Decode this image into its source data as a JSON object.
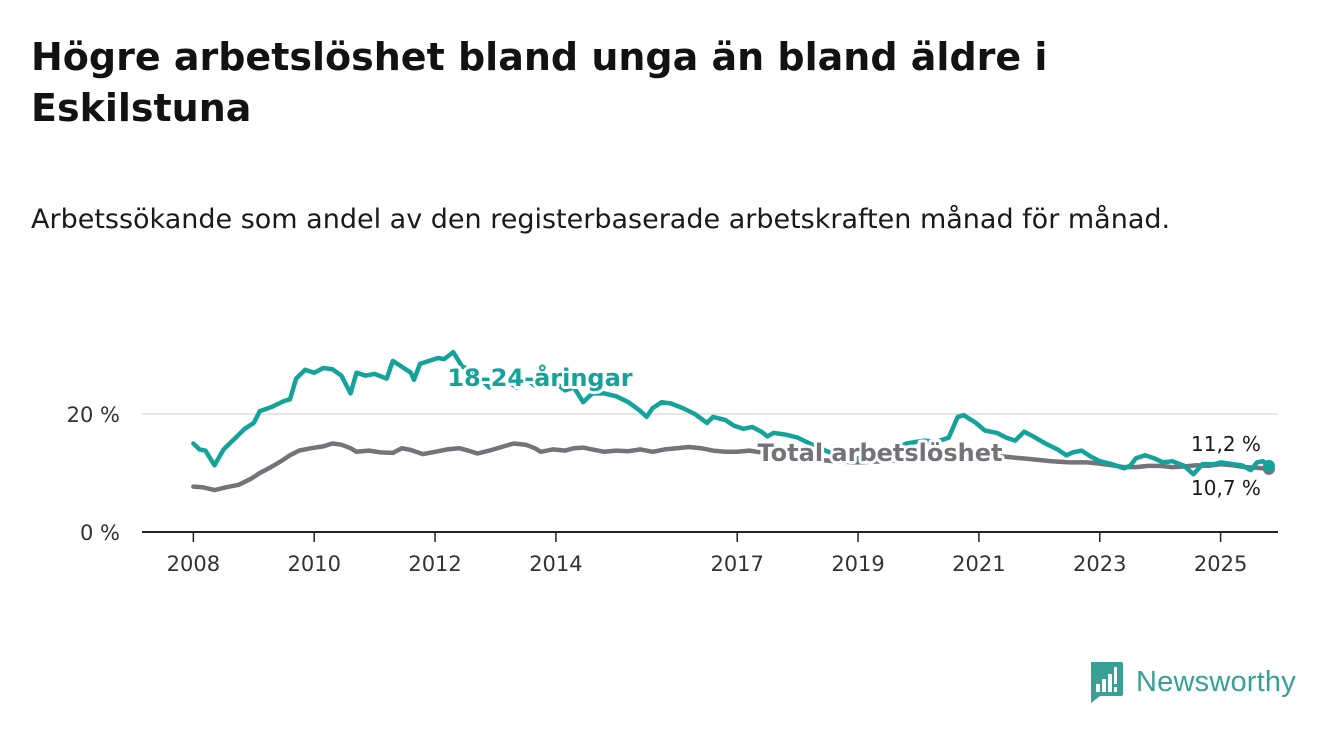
{
  "title": "Högre arbetslöshet bland unga än bland äldre i Eskilstuna",
  "subtitle": "Arbetssökande som andel av den registerbaserade arbetskraften månad för månad.",
  "brand": {
    "name": "Newsworthy",
    "color": "#39a095"
  },
  "chart_data": {
    "type": "line",
    "y_ticks": [
      "0 %",
      "20 %"
    ],
    "y_tick_values": [
      0,
      20
    ],
    "ylim": [
      0,
      30
    ],
    "x_ticks": [
      "2008",
      "2010",
      "2012",
      "2014",
      "2017",
      "2019",
      "2021",
      "2023",
      "2025"
    ],
    "x_tick_values": [
      2008,
      2010,
      2012,
      2014,
      2017,
      2019,
      2021,
      2023,
      2025
    ],
    "xlim": [
      2007.15,
      2025.95
    ],
    "grid": true,
    "series": [
      {
        "name": "18-24-åringar",
        "label": "18-24-åringar",
        "color": "#14a39a",
        "last_value_label": "11,2 %",
        "points": [
          [
            2008.0,
            15.0
          ],
          [
            2008.1,
            14.0
          ],
          [
            2008.2,
            13.8
          ],
          [
            2008.35,
            11.3
          ],
          [
            2008.5,
            14.0
          ],
          [
            2008.7,
            16.0
          ],
          [
            2008.85,
            17.5
          ],
          [
            2009.0,
            18.5
          ],
          [
            2009.1,
            20.5
          ],
          [
            2009.3,
            21.2
          ],
          [
            2009.5,
            22.2
          ],
          [
            2009.6,
            22.5
          ],
          [
            2009.7,
            26.0
          ],
          [
            2009.85,
            27.5
          ],
          [
            2010.0,
            27.0
          ],
          [
            2010.15,
            27.8
          ],
          [
            2010.3,
            27.6
          ],
          [
            2010.45,
            26.5
          ],
          [
            2010.6,
            23.5
          ],
          [
            2010.7,
            27.0
          ],
          [
            2010.85,
            26.5
          ],
          [
            2011.0,
            26.8
          ],
          [
            2011.2,
            26.0
          ],
          [
            2011.3,
            29.0
          ],
          [
            2011.45,
            28.0
          ],
          [
            2011.6,
            27.0
          ],
          [
            2011.65,
            25.8
          ],
          [
            2011.75,
            28.5
          ],
          [
            2011.9,
            29.0
          ],
          [
            2012.05,
            29.5
          ],
          [
            2012.15,
            29.3
          ],
          [
            2012.3,
            30.5
          ],
          [
            2012.45,
            28.0
          ],
          [
            2012.6,
            27.5
          ],
          [
            2012.75,
            26.0
          ],
          [
            2012.9,
            24.5
          ],
          [
            2013.0,
            25.0
          ],
          [
            2013.2,
            25.5
          ],
          [
            2013.35,
            24.5
          ],
          [
            2013.5,
            26.0
          ],
          [
            2013.65,
            24.8
          ],
          [
            2013.8,
            25.5
          ],
          [
            2014.0,
            25.2
          ],
          [
            2014.15,
            24.0
          ],
          [
            2014.3,
            24.5
          ],
          [
            2014.45,
            22.0
          ],
          [
            2014.6,
            23.5
          ],
          [
            2014.8,
            23.5
          ],
          [
            2015.0,
            23.0
          ],
          [
            2015.2,
            22.0
          ],
          [
            2015.4,
            20.5
          ],
          [
            2015.5,
            19.5
          ],
          [
            2015.6,
            21.0
          ],
          [
            2015.75,
            22.0
          ],
          [
            2015.9,
            21.8
          ],
          [
            2016.1,
            21.0
          ],
          [
            2016.3,
            20.0
          ],
          [
            2016.5,
            18.5
          ],
          [
            2016.6,
            19.5
          ],
          [
            2016.8,
            19.0
          ],
          [
            2016.95,
            18.0
          ],
          [
            2017.1,
            17.5
          ],
          [
            2017.25,
            17.8
          ],
          [
            2017.4,
            17.0
          ],
          [
            2017.5,
            16.2
          ],
          [
            2017.6,
            16.8
          ],
          [
            2017.8,
            16.5
          ],
          [
            2018.0,
            16.0
          ],
          [
            2018.3,
            14.5
          ],
          [
            2018.6,
            13.2
          ],
          [
            2018.9,
            12.5
          ],
          [
            2019.2,
            12.5
          ],
          [
            2019.5,
            13.5
          ],
          [
            2019.8,
            15.0
          ],
          [
            2020.1,
            15.5
          ],
          [
            2020.3,
            15.3
          ],
          [
            2020.5,
            16.0
          ],
          [
            2020.65,
            19.5
          ],
          [
            2020.75,
            19.8
          ],
          [
            2020.95,
            18.5
          ],
          [
            2021.1,
            17.2
          ],
          [
            2021.3,
            16.8
          ],
          [
            2021.45,
            16.0
          ],
          [
            2021.6,
            15.5
          ],
          [
            2021.75,
            17.0
          ],
          [
            2021.9,
            16.2
          ],
          [
            2022.1,
            15.0
          ],
          [
            2022.3,
            14.0
          ],
          [
            2022.45,
            13.0
          ],
          [
            2022.55,
            13.5
          ],
          [
            2022.7,
            13.8
          ],
          [
            2022.85,
            12.8
          ],
          [
            2023.0,
            12.0
          ],
          [
            2023.2,
            11.5
          ],
          [
            2023.4,
            10.8
          ],
          [
            2023.5,
            11.2
          ],
          [
            2023.6,
            12.5
          ],
          [
            2023.75,
            13.0
          ],
          [
            2023.9,
            12.5
          ],
          [
            2024.05,
            11.8
          ],
          [
            2024.2,
            12.0
          ],
          [
            2024.4,
            11.2
          ],
          [
            2024.55,
            9.8
          ],
          [
            2024.7,
            11.5
          ],
          [
            2024.9,
            11.5
          ],
          [
            2025.0,
            11.8
          ],
          [
            2025.2,
            11.5
          ],
          [
            2025.35,
            11.3
          ],
          [
            2025.5,
            10.5
          ],
          [
            2025.6,
            11.8
          ],
          [
            2025.7,
            12.0
          ],
          [
            2025.8,
            11.2
          ]
        ]
      },
      {
        "name": "Total arbetslöshet",
        "label": "Total arbetslöshet",
        "color": "#75737a",
        "last_value_label": "10,7 %",
        "points": [
          [
            2008.0,
            7.7
          ],
          [
            2008.15,
            7.6
          ],
          [
            2008.35,
            7.1
          ],
          [
            2008.55,
            7.6
          ],
          [
            2008.75,
            8.0
          ],
          [
            2008.95,
            9.0
          ],
          [
            2009.1,
            10.0
          ],
          [
            2009.25,
            10.8
          ],
          [
            2009.45,
            12.0
          ],
          [
            2009.6,
            13.0
          ],
          [
            2009.75,
            13.8
          ],
          [
            2009.95,
            14.2
          ],
          [
            2010.15,
            14.5
          ],
          [
            2010.3,
            15.0
          ],
          [
            2010.45,
            14.8
          ],
          [
            2010.6,
            14.2
          ],
          [
            2010.7,
            13.6
          ],
          [
            2010.9,
            13.8
          ],
          [
            2011.1,
            13.5
          ],
          [
            2011.3,
            13.4
          ],
          [
            2011.45,
            14.2
          ],
          [
            2011.6,
            13.9
          ],
          [
            2011.8,
            13.2
          ],
          [
            2012.0,
            13.6
          ],
          [
            2012.2,
            14.0
          ],
          [
            2012.4,
            14.2
          ],
          [
            2012.55,
            13.8
          ],
          [
            2012.7,
            13.3
          ],
          [
            2012.9,
            13.8
          ],
          [
            2013.1,
            14.4
          ],
          [
            2013.3,
            15.0
          ],
          [
            2013.5,
            14.8
          ],
          [
            2013.65,
            14.2
          ],
          [
            2013.75,
            13.6
          ],
          [
            2013.95,
            14.0
          ],
          [
            2014.15,
            13.8
          ],
          [
            2014.3,
            14.2
          ],
          [
            2014.45,
            14.3
          ],
          [
            2014.6,
            14.0
          ],
          [
            2014.8,
            13.6
          ],
          [
            2015.0,
            13.8
          ],
          [
            2015.2,
            13.7
          ],
          [
            2015.4,
            14.0
          ],
          [
            2015.6,
            13.6
          ],
          [
            2015.8,
            14.0
          ],
          [
            2016.0,
            14.2
          ],
          [
            2016.2,
            14.4
          ],
          [
            2016.4,
            14.2
          ],
          [
            2016.6,
            13.8
          ],
          [
            2016.8,
            13.6
          ],
          [
            2017.0,
            13.6
          ],
          [
            2017.2,
            13.8
          ],
          [
            2017.4,
            13.5
          ],
          [
            2017.6,
            13.3
          ],
          [
            2017.8,
            13.0
          ],
          [
            2018.2,
            12.4
          ],
          [
            2018.6,
            12.0
          ],
          [
            2019.0,
            11.8
          ],
          [
            2019.4,
            12.0
          ],
          [
            2019.8,
            12.2
          ],
          [
            2020.2,
            12.8
          ],
          [
            2020.6,
            13.2
          ],
          [
            2021.0,
            13.0
          ],
          [
            2021.4,
            12.8
          ],
          [
            2021.8,
            12.4
          ],
          [
            2022.2,
            12.0
          ],
          [
            2022.5,
            11.8
          ],
          [
            2022.8,
            11.8
          ],
          [
            2023.0,
            11.6
          ],
          [
            2023.2,
            11.3
          ],
          [
            2023.4,
            11.0
          ],
          [
            2023.6,
            11.0
          ],
          [
            2023.8,
            11.2
          ],
          [
            2024.0,
            11.2
          ],
          [
            2024.2,
            11.0
          ],
          [
            2024.4,
            11.1
          ],
          [
            2024.6,
            11.3
          ],
          [
            2024.8,
            11.2
          ],
          [
            2025.0,
            11.5
          ],
          [
            2025.2,
            11.3
          ],
          [
            2025.4,
            11.0
          ],
          [
            2025.6,
            10.9
          ],
          [
            2025.8,
            10.7
          ]
        ]
      }
    ]
  }
}
